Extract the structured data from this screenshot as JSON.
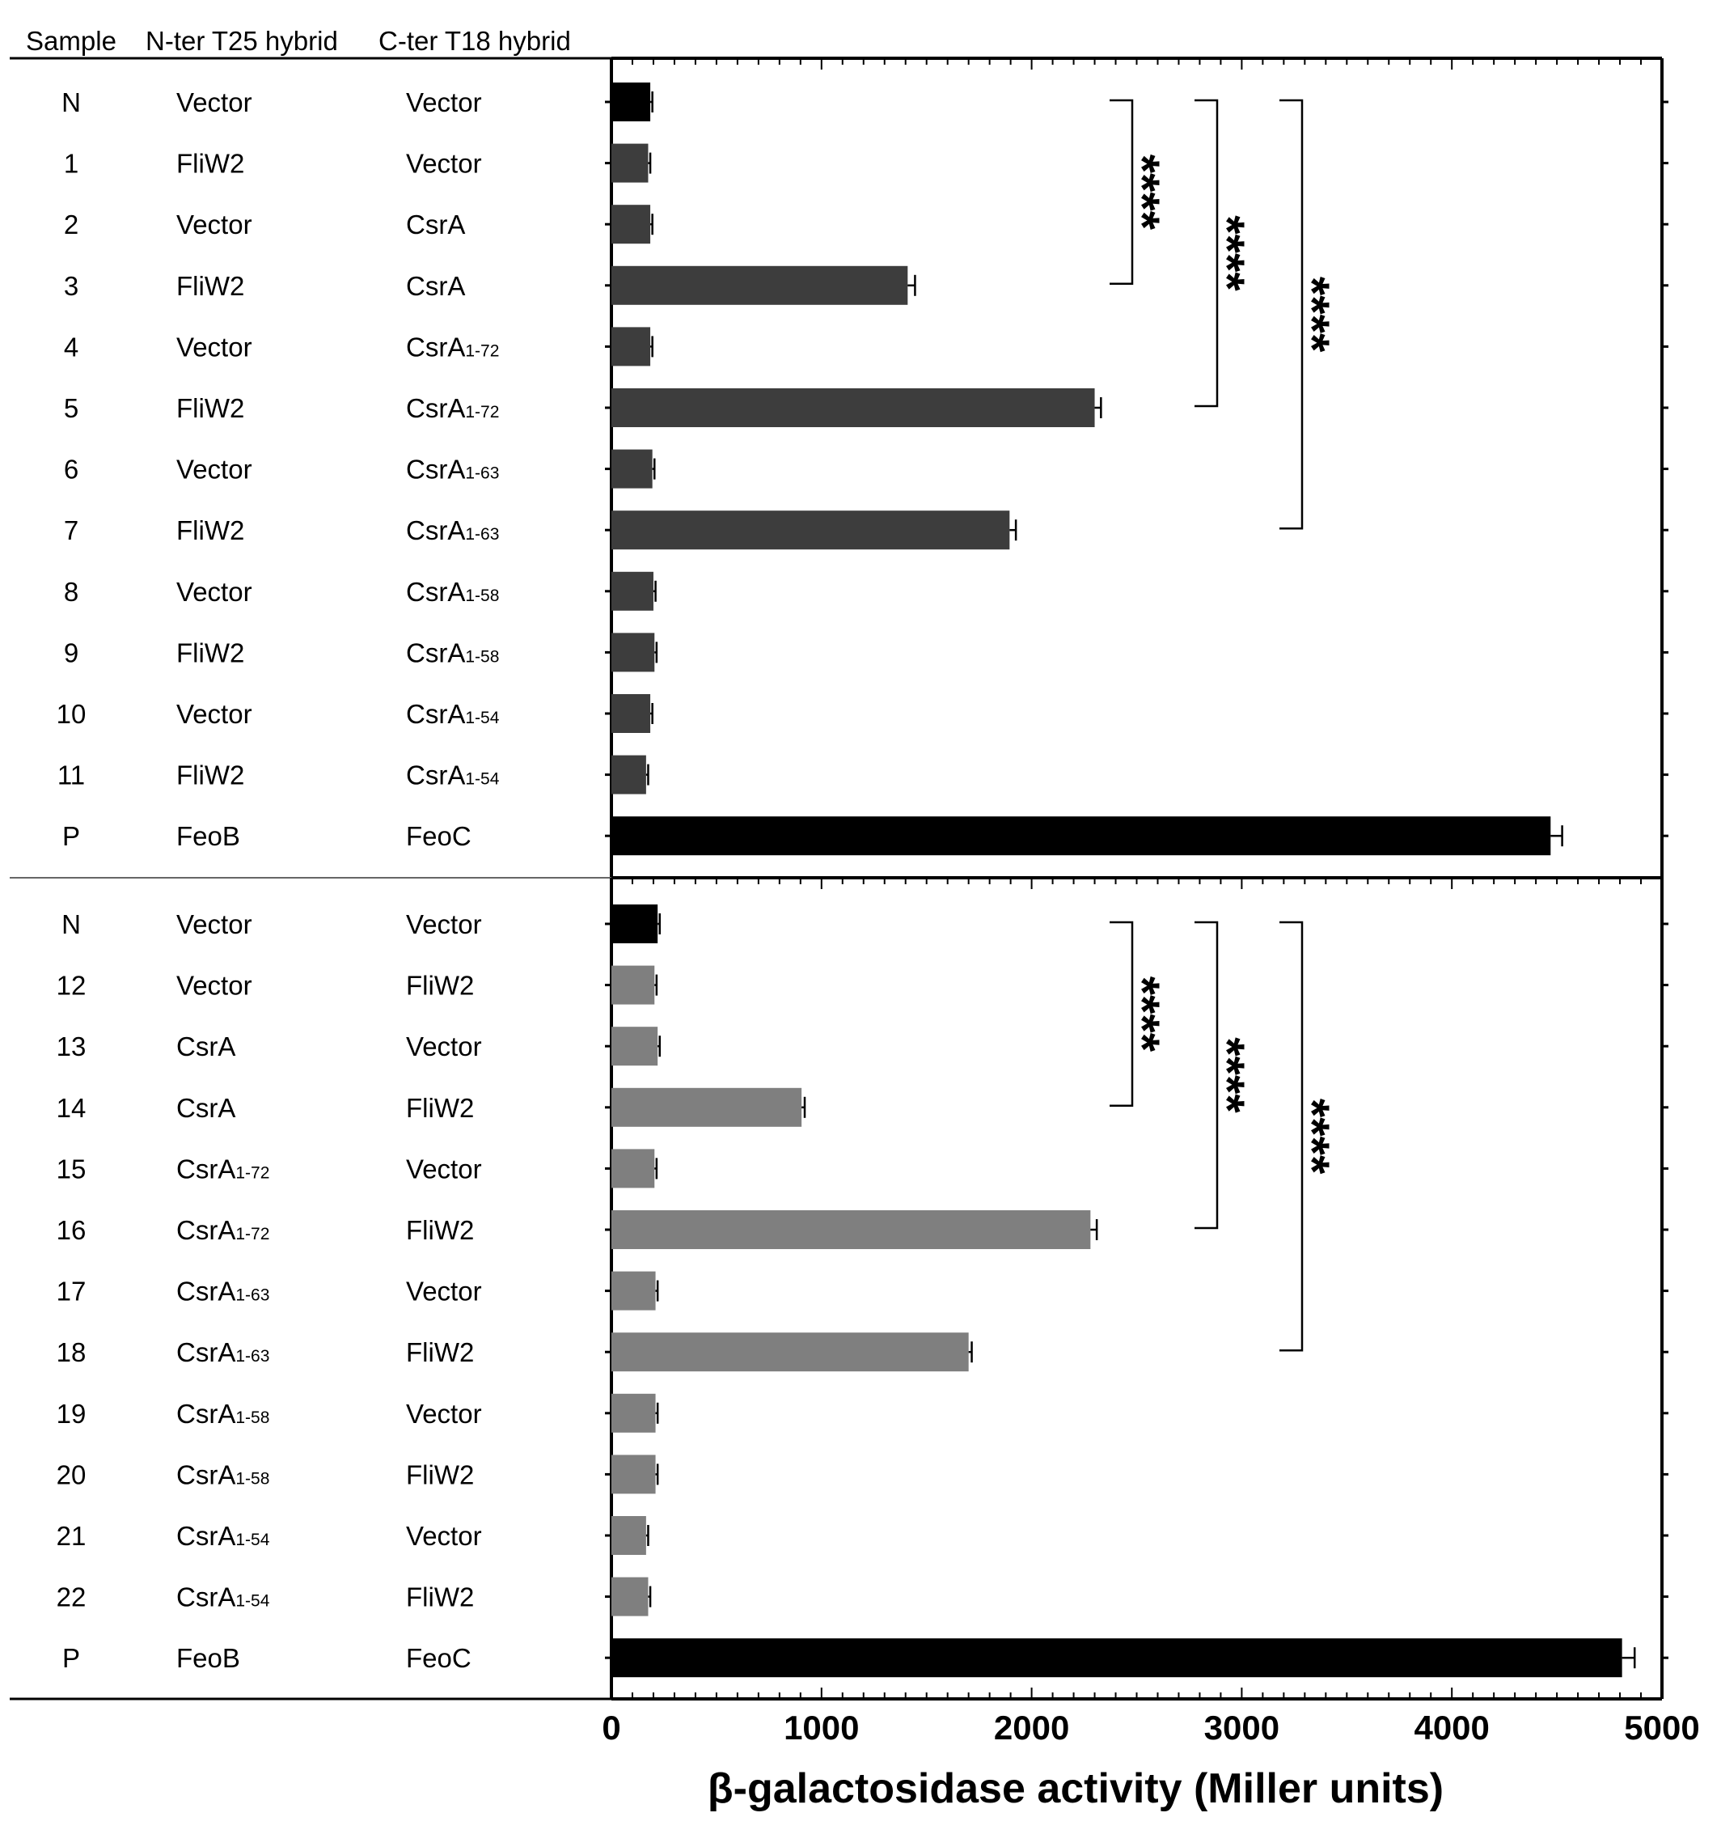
{
  "header": {
    "sample": "Sample",
    "nter": "N-ter T25 hybrid",
    "cter": "C-ter T18 hybrid"
  },
  "colors": {
    "control": "#000000",
    "top_series": "#3d3d3d",
    "bottom_series": "#7f7f7f",
    "axis": "#000000"
  },
  "chart_data": {
    "type": "bar",
    "orientation": "horizontal",
    "title": "",
    "xlabel": "β-galactosidase activity (Miller units)",
    "xlim": [
      0,
      5000
    ],
    "xticks": [
      "0",
      "1000",
      "2000",
      "3000",
      "4000",
      "5000"
    ],
    "grid": false,
    "panels": [
      {
        "name": "top",
        "rows": [
          {
            "sample": "N",
            "nter": "Vector",
            "nter_sub": "",
            "cter": "Vector",
            "cter_sub": "",
            "value": 185,
            "error": 10,
            "control": true
          },
          {
            "sample": "1",
            "nter": "FliW2",
            "nter_sub": "",
            "cter": "Vector",
            "cter_sub": "",
            "value": 175,
            "error": 10,
            "control": false
          },
          {
            "sample": "2",
            "nter": "Vector",
            "nter_sub": "",
            "cter": "CsrA",
            "cter_sub": "",
            "value": 185,
            "error": 10,
            "control": false
          },
          {
            "sample": "3",
            "nter": "FliW2",
            "nter_sub": "",
            "cter": "CsrA",
            "cter_sub": "",
            "value": 1410,
            "error": 35,
            "control": false
          },
          {
            "sample": "4",
            "nter": "Vector",
            "nter_sub": "",
            "cter": "CsrA",
            "cter_sub": "1-72",
            "value": 185,
            "error": 10,
            "control": false
          },
          {
            "sample": "5",
            "nter": "FliW2",
            "nter_sub": "",
            "cter": "CsrA",
            "cter_sub": "1-72",
            "value": 2300,
            "error": 30,
            "control": false
          },
          {
            "sample": "6",
            "nter": "Vector",
            "nter_sub": "",
            "cter": "CsrA",
            "cter_sub": "1-63",
            "value": 195,
            "error": 10,
            "control": false
          },
          {
            "sample": "7",
            "nter": "FliW2",
            "nter_sub": "",
            "cter": "CsrA",
            "cter_sub": "1-63",
            "value": 1895,
            "error": 30,
            "control": false
          },
          {
            "sample": "8",
            "nter": "Vector",
            "nter_sub": "",
            "cter": "CsrA",
            "cter_sub": "1-58",
            "value": 200,
            "error": 10,
            "control": false
          },
          {
            "sample": "9",
            "nter": "FliW2",
            "nter_sub": "",
            "cter": "CsrA",
            "cter_sub": "1-58",
            "value": 205,
            "error": 10,
            "control": false
          },
          {
            "sample": "10",
            "nter": "Vector",
            "nter_sub": "",
            "cter": "CsrA",
            "cter_sub": "1-54",
            "value": 185,
            "error": 10,
            "control": false
          },
          {
            "sample": "11",
            "nter": "FliW2",
            "nter_sub": "",
            "cter": "CsrA",
            "cter_sub": "1-54",
            "value": 165,
            "error": 10,
            "control": false
          },
          {
            "sample": "P",
            "nter": "FeoB",
            "nter_sub": "",
            "cter": "FeoC",
            "cter_sub": "",
            "value": 4470,
            "error": 55,
            "control": true
          }
        ],
        "significance": [
          {
            "from": "N",
            "to": "3",
            "label": "****"
          },
          {
            "from": "N",
            "to": "5",
            "label": "****"
          },
          {
            "from": "N",
            "to": "7",
            "label": "****"
          }
        ]
      },
      {
        "name": "bottom",
        "rows": [
          {
            "sample": "N",
            "nter": "Vector",
            "nter_sub": "",
            "cter": "Vector",
            "cter_sub": "",
            "value": 220,
            "error": 10,
            "control": true
          },
          {
            "sample": "12",
            "nter": "Vector",
            "nter_sub": "",
            "cter": "FliW2",
            "cter_sub": "",
            "value": 205,
            "error": 10,
            "control": false
          },
          {
            "sample": "13",
            "nter": "CsrA",
            "nter_sub": "",
            "cter": "Vector",
            "cter_sub": "",
            "value": 220,
            "error": 10,
            "control": false
          },
          {
            "sample": "14",
            "nter": "CsrA",
            "nter_sub": "",
            "cter": "FliW2",
            "cter_sub": "",
            "value": 905,
            "error": 15,
            "control": false
          },
          {
            "sample": "15",
            "nter": "CsrA",
            "nter_sub": "1-72",
            "cter": "Vector",
            "cter_sub": "",
            "value": 205,
            "error": 10,
            "control": false
          },
          {
            "sample": "16",
            "nter": "CsrA",
            "nter_sub": "1-72",
            "cter": "FliW2",
            "cter_sub": "",
            "value": 2280,
            "error": 30,
            "control": false
          },
          {
            "sample": "17",
            "nter": "CsrA",
            "nter_sub": "1-63",
            "cter": "Vector",
            "cter_sub": "",
            "value": 210,
            "error": 10,
            "control": false
          },
          {
            "sample": "18",
            "nter": "CsrA",
            "nter_sub": "1-63",
            "cter": "FliW2",
            "cter_sub": "",
            "value": 1700,
            "error": 15,
            "control": false
          },
          {
            "sample": "19",
            "nter": "CsrA",
            "nter_sub": "1-58",
            "cter": "Vector",
            "cter_sub": "",
            "value": 210,
            "error": 10,
            "control": false
          },
          {
            "sample": "20",
            "nter": "CsrA",
            "nter_sub": "1-58",
            "cter": "FliW2",
            "cter_sub": "",
            "value": 210,
            "error": 10,
            "control": false
          },
          {
            "sample": "21",
            "nter": "CsrA",
            "nter_sub": "1-54",
            "cter": "Vector",
            "cter_sub": "",
            "value": 165,
            "error": 10,
            "control": false
          },
          {
            "sample": "22",
            "nter": "CsrA",
            "nter_sub": "1-54",
            "cter": "FliW2",
            "cter_sub": "",
            "value": 175,
            "error": 10,
            "control": false
          },
          {
            "sample": "P",
            "nter": "FeoB",
            "nter_sub": "",
            "cter": "FeoC",
            "cter_sub": "",
            "value": 4810,
            "error": 60,
            "control": true
          }
        ],
        "significance": [
          {
            "from": "N",
            "to": "14",
            "label": "****"
          },
          {
            "from": "N",
            "to": "16",
            "label": "****"
          },
          {
            "from": "N",
            "to": "18",
            "label": "****"
          }
        ]
      }
    ]
  }
}
